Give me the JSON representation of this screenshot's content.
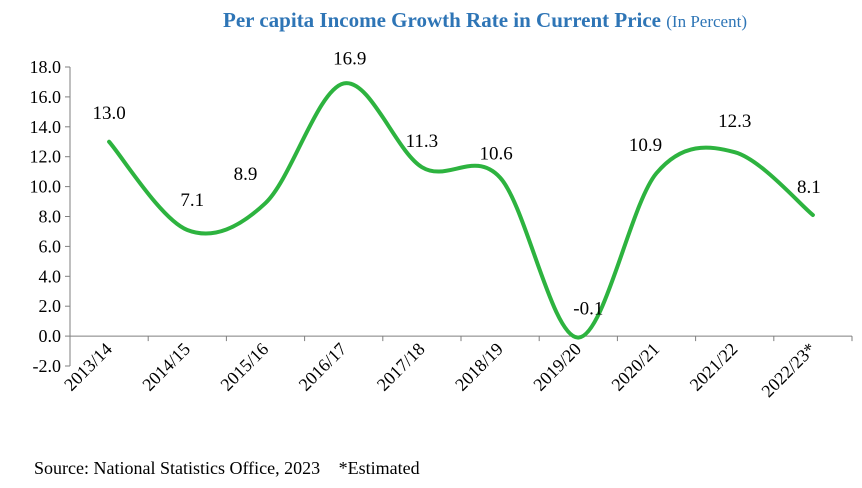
{
  "title": "Per capita Income Growth Rate in Current Price",
  "subtitle": "(In Percent)",
  "source": "Source: National Statistics Office, 2023",
  "note": "*Estimated",
  "colors": {
    "title": "#2e75b6",
    "line": "#2db33f",
    "axis": "#000000"
  },
  "chart_data": {
    "type": "line",
    "title": "Per capita Income Growth Rate in Current Price",
    "subtitle": "(In Percent)",
    "categories": [
      "2013/14",
      "2014/15",
      "2015/16",
      "2016/17",
      "2017/18",
      "2018/19",
      "2019/20",
      "2020/21",
      "2021/22",
      "2022/23*"
    ],
    "series": [
      {
        "values": [
          13.0,
          7.1,
          8.9,
          16.9,
          11.3,
          10.6,
          -0.1,
          10.9,
          12.3,
          8.1
        ]
      }
    ],
    "data_labels": [
      "13.0",
      "7.1",
      "8.9",
      "16.9",
      "11.3",
      "10.6",
      "-0.1",
      "10.9",
      "12.3",
      "8.1"
    ],
    "yticks": [
      "18.0",
      "16.0",
      "14.0",
      "12.0",
      "10.0",
      "8.0",
      "6.0",
      "4.0",
      "2.0",
      "0.0",
      "-2.0"
    ],
    "ylim": [
      -2,
      18
    ],
    "smooth": true,
    "grid": false,
    "legend": "none"
  }
}
